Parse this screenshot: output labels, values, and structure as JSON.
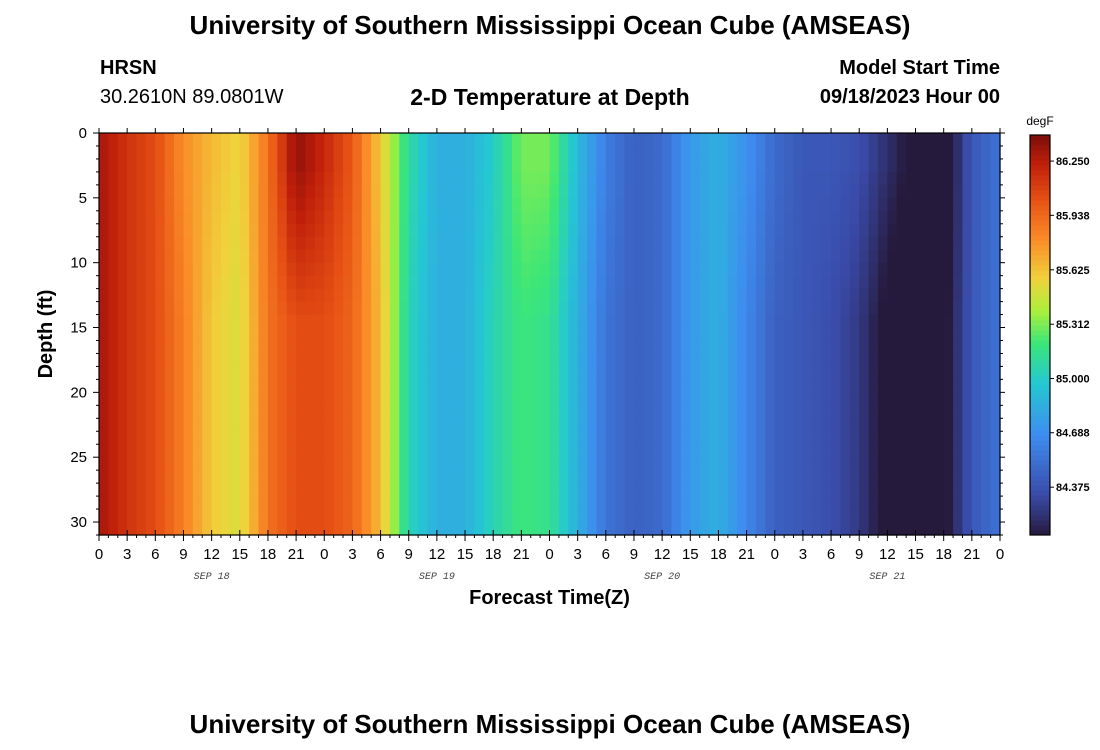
{
  "page": {
    "title": "University of Southern Mississippi Ocean Cube (AMSEAS)",
    "title_repeat": "University of Southern Mississippi Ocean Cube (AMSEAS)",
    "station": "HRSN",
    "coordinates": "30.2610N  89.0801W",
    "subtitle": "2-D Temperature at Depth",
    "model_start_label": "Model Start Time",
    "model_start_value": "09/18/2023 Hour 00"
  },
  "chart_data": {
    "type": "heatmap",
    "title": "2-D Temperature at Depth",
    "xlabel": "Forecast Time(Z)",
    "ylabel": "Depth (ft)",
    "x_unit": "hours from 09/18/2023 00Z",
    "xlim": [
      0,
      96
    ],
    "ylim": [
      0,
      31
    ],
    "y_inverted": true,
    "x_tick_labels": [
      "0",
      "3",
      "6",
      "9",
      "12",
      "15",
      "18",
      "21",
      "0",
      "3",
      "6",
      "9",
      "12",
      "15",
      "18",
      "21",
      "0",
      "3",
      "6",
      "9",
      "12",
      "15",
      "18",
      "21",
      "0",
      "3",
      "6",
      "9",
      "12",
      "15",
      "18",
      "21",
      "0"
    ],
    "x_tick_hours": [
      0,
      3,
      6,
      9,
      12,
      15,
      18,
      21,
      24,
      27,
      30,
      33,
      36,
      39,
      42,
      45,
      48,
      51,
      54,
      57,
      60,
      63,
      66,
      69,
      72,
      75,
      78,
      81,
      84,
      87,
      90,
      93,
      96
    ],
    "date_labels": [
      {
        "text": "SEP 18",
        "hour": 12
      },
      {
        "text": "SEP 19",
        "hour": 36
      },
      {
        "text": "SEP 20",
        "hour": 60
      },
      {
        "text": "SEP 21",
        "hour": 84
      }
    ],
    "y_ticks": [
      0,
      5,
      10,
      15,
      20,
      25,
      30
    ],
    "colorbar": {
      "unit": "degF",
      "min": 84.1,
      "max": 86.4,
      "labels": [
        "86.250",
        "85.938",
        "85.625",
        "85.312",
        "85.000",
        "84.688",
        "84.375"
      ],
      "label_values": [
        86.25,
        85.938,
        85.625,
        85.312,
        85.0,
        84.688,
        84.375
      ]
    },
    "surface_temperature_series": {
      "name": "",
      "hours": [
        0,
        3,
        6,
        9,
        12,
        15,
        18,
        21,
        24,
        27,
        30,
        33,
        36,
        39,
        42,
        45,
        48,
        51,
        54,
        57,
        60,
        63,
        66,
        69,
        72,
        75,
        78,
        81,
        84,
        87,
        90,
        93,
        96
      ],
      "degF": [
        86.3,
        86.15,
        86.05,
        85.8,
        85.65,
        85.55,
        85.9,
        86.35,
        86.2,
        86.0,
        85.6,
        85.1,
        84.85,
        84.85,
        85.0,
        85.3,
        85.3,
        84.9,
        84.6,
        84.45,
        84.5,
        84.75,
        84.85,
        84.7,
        84.5,
        84.4,
        84.4,
        84.35,
        84.2,
        84.05,
        84.0,
        84.4,
        84.55
      ]
    },
    "deep_temperature_series": {
      "name": "",
      "hours": [
        0,
        3,
        6,
        9,
        12,
        15,
        18,
        21,
        24,
        27,
        30,
        33,
        36,
        39,
        42,
        45,
        48,
        51,
        54,
        57,
        60,
        63,
        66,
        69,
        72,
        75,
        78,
        81,
        84,
        87,
        90,
        93,
        96
      ],
      "degF": [
        86.3,
        86.15,
        86.05,
        85.85,
        85.6,
        85.5,
        85.9,
        86.05,
        86.05,
        85.95,
        85.65,
        85.05,
        84.85,
        84.85,
        85.05,
        85.2,
        85.15,
        84.85,
        84.55,
        84.45,
        84.5,
        84.75,
        84.85,
        84.65,
        84.45,
        84.4,
        84.35,
        84.25,
        84.05,
        83.95,
        84.05,
        84.4,
        84.55
      ]
    }
  }
}
